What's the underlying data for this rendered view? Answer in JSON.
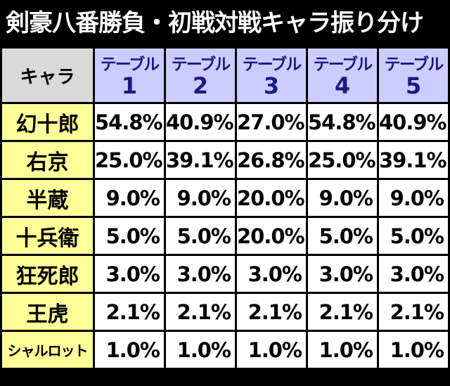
{
  "title": "剣豪八番勝負・初戦対戦キャラ振り分け",
  "table": {
    "corner": "キャラ",
    "columns": [
      {
        "label": "テーブル",
        "number": "1"
      },
      {
        "label": "テーブル",
        "number": "2"
      },
      {
        "label": "テーブル",
        "number": "3"
      },
      {
        "label": "テーブル",
        "number": "4"
      },
      {
        "label": "テーブル",
        "number": "5"
      }
    ],
    "rows": [
      {
        "name": "幻十郎",
        "cells": [
          "54.8%",
          "40.9%",
          "27.0%",
          "54.8%",
          "40.9%"
        ]
      },
      {
        "name": "右京",
        "cells": [
          "25.0%",
          "39.1%",
          "26.8%",
          "25.0%",
          "39.1%"
        ]
      },
      {
        "name": "半蔵",
        "cells": [
          "9.0%",
          "9.0%",
          "20.0%",
          "9.0%",
          "9.0%"
        ]
      },
      {
        "name": "十兵衛",
        "cells": [
          "5.0%",
          "5.0%",
          "20.0%",
          "5.0%",
          "5.0%"
        ]
      },
      {
        "name": "狂死郎",
        "cells": [
          "3.0%",
          "3.0%",
          "3.0%",
          "3.0%",
          "3.0%"
        ]
      },
      {
        "name": "王虎",
        "cells": [
          "2.1%",
          "2.1%",
          "2.1%",
          "2.1%",
          "2.1%"
        ]
      },
      {
        "name": "シャルロット",
        "cells": [
          "1.0%",
          "1.0%",
          "1.0%",
          "1.0%",
          "1.0%"
        ]
      }
    ]
  }
}
